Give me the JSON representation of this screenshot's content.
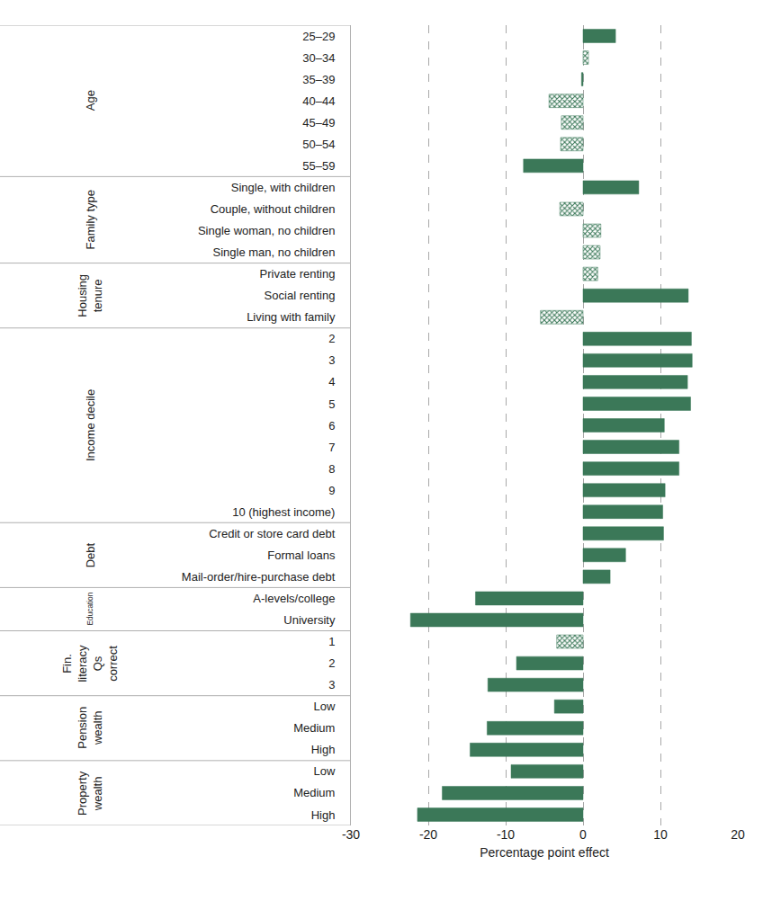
{
  "chart_data": {
    "type": "bar",
    "orientation": "horizontal",
    "xlabel": "Percentage point effect",
    "xlim": [
      -30,
      20
    ],
    "xticks": [
      -30,
      -20,
      -10,
      0,
      10,
      20
    ],
    "grid": true,
    "groups": [
      {
        "label": "Age",
        "categories": [
          "25–29",
          "30–34",
          "35–39",
          "40–44",
          "45–49",
          "50–54",
          "55–59"
        ]
      },
      {
        "label": "Family type",
        "categories": [
          "Single, with children",
          "Couple, without children",
          "Single woman, no children",
          "Single man, no children"
        ]
      },
      {
        "label": "Housing tenure",
        "categories": [
          "Private renting",
          "Social renting",
          "Living with family"
        ]
      },
      {
        "label": "Income decile",
        "categories": [
          "2",
          "3",
          "4",
          "5",
          "6",
          "7",
          "8",
          "9",
          "10 (highest income)"
        ]
      },
      {
        "label": "Debt",
        "categories": [
          "Credit or store card debt",
          "Formal loans",
          "Mail-order/hire-purchase debt"
        ]
      },
      {
        "label": "Education",
        "categories": [
          "A-levels/college",
          "University"
        ]
      },
      {
        "label": "Fin. literacy Qs correct",
        "categories": [
          "1",
          "2",
          "3"
        ]
      },
      {
        "label": "Pension wealth",
        "categories": [
          "Low",
          "Medium",
          "High"
        ]
      },
      {
        "label": "Property wealth",
        "categories": [
          "Low",
          "Medium",
          "High"
        ]
      }
    ],
    "series": [
      {
        "marker": "solid",
        "color": "#3b7858",
        "values": [
          4.2,
          null,
          -0.2,
          null,
          null,
          null,
          -7.7,
          7.2,
          null,
          null,
          null,
          null,
          13.6,
          null,
          14.0,
          14.1,
          13.5,
          13.9,
          10.5,
          12.4,
          12.4,
          10.6,
          10.3,
          10.4,
          5.5,
          3.5,
          -13.9,
          -22.3,
          null,
          -8.6,
          -12.3,
          -3.7,
          -12.4,
          -14.6,
          -9.3,
          -18.2,
          -21.4
        ]
      },
      {
        "marker": "hatched",
        "color": "#3b7858",
        "values": [
          null,
          0.7,
          null,
          -4.4,
          -2.8,
          -2.9,
          null,
          null,
          -3.0,
          2.3,
          2.2,
          1.9,
          null,
          -5.5,
          null,
          null,
          null,
          null,
          null,
          null,
          null,
          null,
          null,
          null,
          null,
          null,
          null,
          null,
          -3.4,
          null,
          null,
          null,
          null,
          null,
          null,
          null,
          null
        ]
      }
    ]
  }
}
